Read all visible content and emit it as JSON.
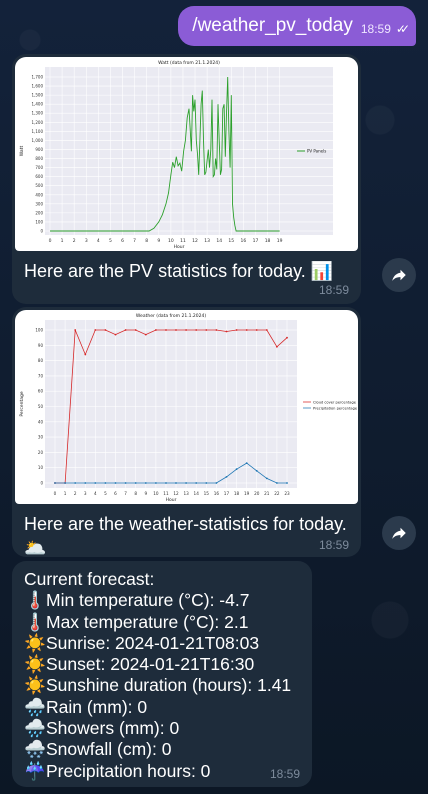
{
  "outgoing": {
    "text": "/weather_pv_today",
    "time": "18:59"
  },
  "pv_message": {
    "caption": "Here are the PV statistics for today.",
    "caption_emoji": "📊",
    "time": "18:59",
    "chart_data": {
      "type": "line",
      "title": "Watt (data from 21.1.2024)",
      "xlabel": "Hour",
      "ylabel": "Watt",
      "ylim": [
        0,
        1700
      ],
      "xlim": [
        0,
        23
      ],
      "yticks": [
        "0",
        "100",
        "200",
        "300",
        "400",
        "500",
        "600",
        "700",
        "800",
        "900",
        "1,000",
        "1,100",
        "1,200",
        "1,300",
        "1,400",
        "1,500",
        "1,600",
        "1,700"
      ],
      "xticks": [
        "0",
        "1",
        "2",
        "3",
        "4",
        "5",
        "6",
        "7",
        "8",
        "9",
        "10",
        "11",
        "12",
        "13",
        "14",
        "15",
        "16",
        "17",
        "18",
        "19"
      ],
      "series": [
        {
          "name": "PV Panels",
          "color": "#2ca02c",
          "x": [
            0,
            8.2,
            8.6,
            9.0,
            9.3,
            9.6,
            9.8,
            10.0,
            10.15,
            10.3,
            10.45,
            10.6,
            10.75,
            10.9,
            11.05,
            11.2,
            11.35,
            11.5,
            11.6,
            11.7,
            11.8,
            11.9,
            12.0,
            12.1,
            12.2,
            12.3,
            12.4,
            12.5,
            12.6,
            12.7,
            12.8,
            12.9,
            13.0,
            13.1,
            13.2,
            13.3,
            13.4,
            13.5,
            13.6,
            13.7,
            13.8,
            13.9,
            14.0,
            14.1,
            14.2,
            14.3,
            14.4,
            14.5,
            14.6,
            14.7,
            14.8,
            14.9,
            15.0,
            15.1,
            15.2,
            15.3,
            15.4,
            15.6,
            19
          ],
          "y": [
            0,
            0,
            30,
            100,
            180,
            300,
            420,
            620,
            760,
            700,
            820,
            720,
            750,
            660,
            880,
            1000,
            1250,
            1350,
            1120,
            880,
            1500,
            1320,
            1450,
            1000,
            850,
            620,
            1000,
            1400,
            1550,
            1000,
            620,
            650,
            780,
            900,
            700,
            900,
            1450,
            600,
            620,
            800,
            680,
            1400,
            1000,
            620,
            680,
            1350,
            1400,
            820,
            1300,
            1700,
            1100,
            700,
            1500,
            300,
            150,
            60,
            0,
            0,
            0
          ]
        }
      ]
    }
  },
  "weather_message": {
    "caption_line1": "Here are the weather-statistics for today.",
    "caption_emoji": "🌥️",
    "time": "18:59",
    "chart_data": {
      "type": "line",
      "title": "Weather (data from 21.1.2024)",
      "xlabel": "Hour",
      "ylabel": "Percentage",
      "ylim": [
        0,
        100
      ],
      "yticks": [
        "0",
        "10",
        "20",
        "30",
        "40",
        "50",
        "60",
        "70",
        "80",
        "90",
        "100"
      ],
      "categories": [
        "0",
        "1",
        "2",
        "3",
        "4",
        "5",
        "6",
        "7",
        "8",
        "9",
        "10",
        "11",
        "12",
        "13",
        "14",
        "15",
        "16",
        "17",
        "18",
        "19",
        "20",
        "21",
        "22",
        "23"
      ],
      "series": [
        {
          "name": "Cloud cover percentage",
          "color": "#d62728",
          "values": [
            0,
            0,
            100,
            84,
            100,
            100,
            97,
            100,
            100,
            97,
            100,
            100,
            100,
            100,
            100,
            100,
            100,
            99,
            100,
            100,
            100,
            100,
            89,
            95
          ]
        },
        {
          "name": "Precipitation percentage",
          "color": "#1f77b4",
          "values": [
            0,
            0,
            0,
            0,
            0,
            0,
            0,
            0,
            0,
            0,
            0,
            0,
            0,
            0,
            0,
            0,
            0,
            4,
            9,
            13,
            8,
            3,
            0,
            0
          ]
        }
      ]
    }
  },
  "forecast_message": {
    "time": "18:59",
    "lines": [
      {
        "emoji": "",
        "text": "Current forecast:"
      },
      {
        "emoji": "🌡️",
        "text": "Min temperature (°C): -4.7"
      },
      {
        "emoji": "🌡️",
        "text": "Max temperature (°C): 2.1"
      },
      {
        "emoji": "☀️",
        "text": "Sunrise: 2024-01-21T08:03"
      },
      {
        "emoji": "☀️",
        "text": "Sunset: 2024-01-21T16:30"
      },
      {
        "emoji": "☀️",
        "text": "Sunshine duration (hours): 1.41"
      },
      {
        "emoji": "🌧️",
        "text": "Rain (mm): 0"
      },
      {
        "emoji": "🌧️",
        "text": "Showers (mm): 0"
      },
      {
        "emoji": "🌨️",
        "text": "Snowfall (cm): 0"
      },
      {
        "emoji": "☔",
        "text": "Precipitation hours: 0"
      }
    ]
  },
  "icons": {
    "share": "share-arrow-icon",
    "read": "double-check-icon"
  }
}
